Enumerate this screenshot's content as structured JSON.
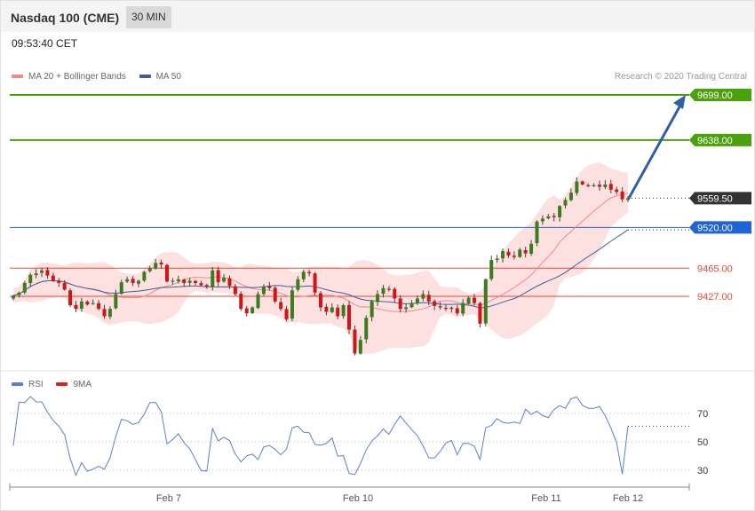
{
  "header": {
    "title": "Nasdaq 100 (CME)",
    "period": "30 MIN"
  },
  "timestamp": "09:53:40 CET",
  "credit": "Research © 2020 Trading Central",
  "legend_main": [
    {
      "label": "MA 20 + Bollinger Bands",
      "color": "#f08a8a"
    },
    {
      "label": "MA 50",
      "color": "#3a5fa0"
    }
  ],
  "legend_rsi": [
    {
      "label": "RSI",
      "color": "#5b7fd4"
    },
    {
      "label": "9MA",
      "color": "#e02020"
    }
  ],
  "chart_data": [
    {
      "type": "candlestick",
      "title": "Nasdaq 100 (CME)",
      "timeframe": "30 MIN",
      "xlabels": [
        "Feb 7",
        "Feb 10",
        "Feb 11",
        "Feb 12"
      ],
      "levels": [
        {
          "value": 9699.0,
          "label": "9699.00",
          "kind": "resistance",
          "color": "#4ba10b"
        },
        {
          "value": 9638.0,
          "label": "9638.00",
          "kind": "resistance",
          "color": "#4ba10b"
        },
        {
          "value": 9559.5,
          "label": "9559.50",
          "kind": "last",
          "color": "#333333"
        },
        {
          "value": 9520.0,
          "label": "9520.00",
          "kind": "pivot",
          "color": "#1f63d6"
        },
        {
          "value": 9465.0,
          "label": "9465.00",
          "kind": "support",
          "color": "#e34a33"
        },
        {
          "value": 9427.0,
          "label": "9427.00",
          "kind": "support",
          "color": "#e34a33"
        }
      ],
      "ylim": [
        9355,
        9745
      ],
      "target_arrow": {
        "from": 9559.5,
        "to": 9699.0
      },
      "close": [
        9428,
        9432,
        9445,
        9456,
        9458,
        9462,
        9455,
        9448,
        9445,
        9436,
        9415,
        9410,
        9420,
        9416,
        9418,
        9410,
        9400,
        9410,
        9430,
        9446,
        9450,
        9445,
        9448,
        9460,
        9465,
        9472,
        9470,
        9447,
        9448,
        9450,
        9445,
        9448,
        9445,
        9442,
        9440,
        9462,
        9446,
        9452,
        9441,
        9430,
        9410,
        9404,
        9412,
        9430,
        9440,
        9438,
        9420,
        9410,
        9396,
        9435,
        9450,
        9460,
        9458,
        9432,
        9412,
        9406,
        9412,
        9400,
        9415,
        9382,
        9350,
        9368,
        9398,
        9420,
        9430,
        9438,
        9436,
        9424,
        9410,
        9412,
        9418,
        9424,
        9430,
        9420,
        9414,
        9412,
        9411,
        9410,
        9404,
        9418,
        9425,
        9418,
        9390,
        9450,
        9476,
        9478,
        9488,
        9482,
        9480,
        9490,
        9485,
        9498,
        9528,
        9532,
        9535,
        9534,
        9549,
        9557,
        9567,
        9582,
        9578,
        9577,
        9577,
        9575,
        9578,
        9571,
        9568,
        9558,
        9559.5
      ],
      "rsi": {
        "levels": [
          30,
          50,
          70
        ],
        "last": 61
      }
    }
  ]
}
